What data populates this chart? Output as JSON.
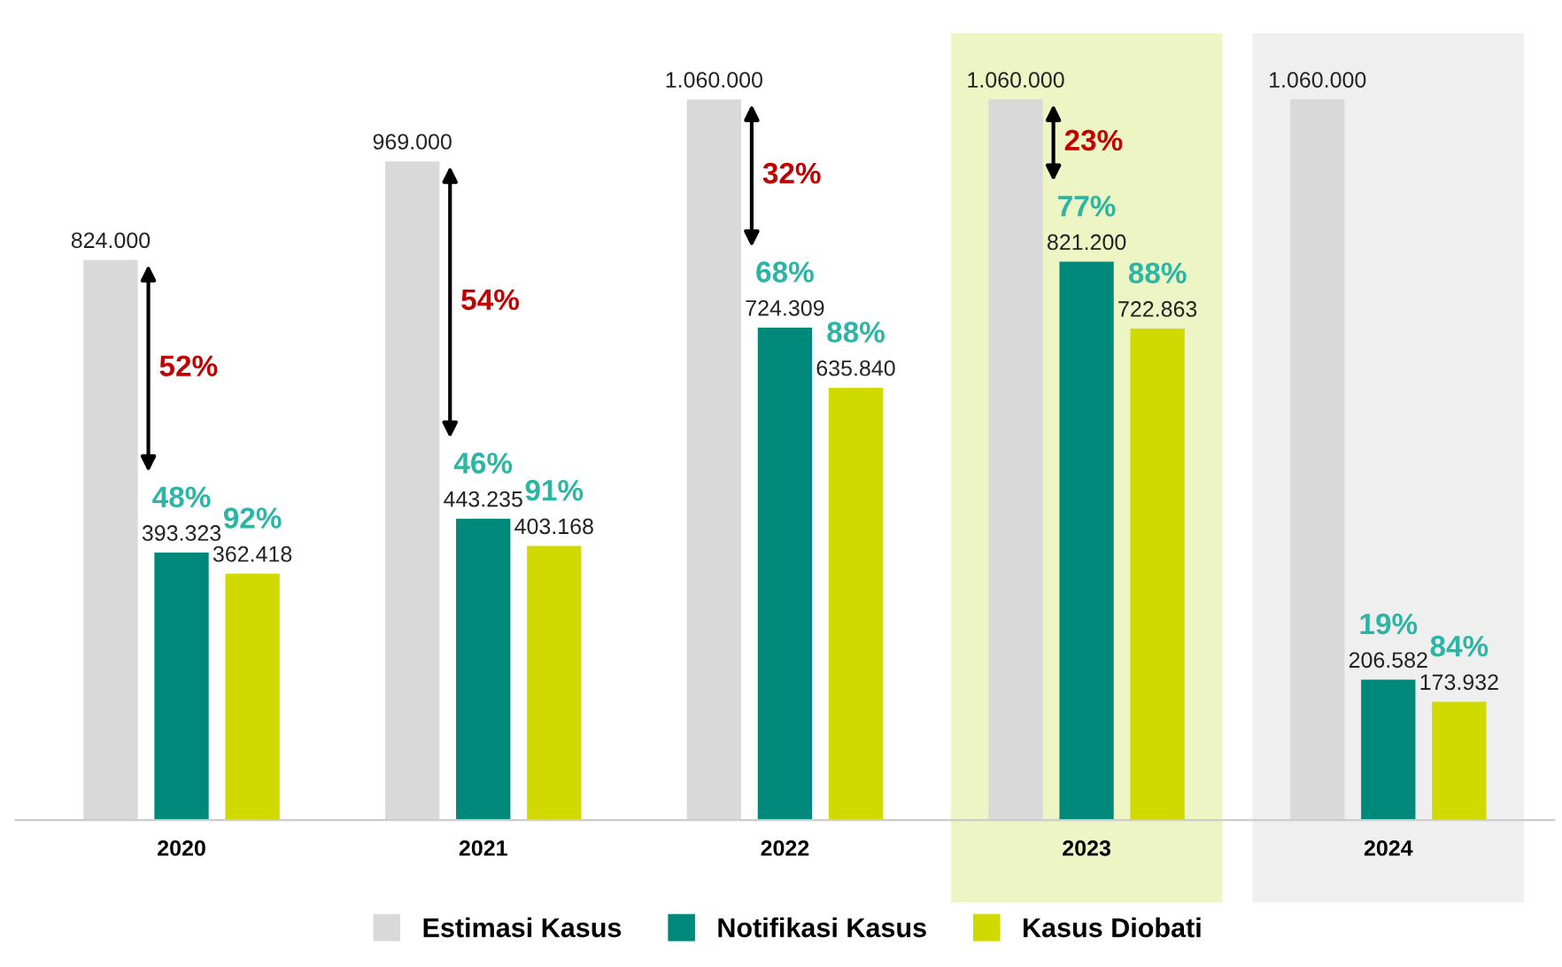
{
  "chart_data": {
    "type": "bar",
    "categories": [
      "2020",
      "2021",
      "2022",
      "2023",
      "2024"
    ],
    "series": [
      {
        "name": "Estimasi Kasus",
        "color": "#d9d9d9",
        "values": [
          824000,
          969000,
          1060000,
          1060000,
          1060000
        ],
        "value_labels": [
          "824.000",
          "969.000",
          "1.060.000",
          "1.060.000",
          "1.060.000"
        ]
      },
      {
        "name": "Notifikasi Kasus",
        "color": "#00897b",
        "values": [
          393323,
          443235,
          724309,
          821200,
          206582
        ],
        "value_labels": [
          "393.323",
          "443.235",
          "724.309",
          "821.200",
          "206.582"
        ]
      },
      {
        "name": "Kasus Diobati",
        "color": "#d0d900",
        "values": [
          362418,
          403168,
          635840,
          722863,
          173932
        ],
        "value_labels": [
          "362.418",
          "403.168",
          "635.840",
          "722.863",
          "173.932"
        ]
      }
    ],
    "annotations": [
      "52%",
      "54%",
      "32%",
      "23%",
      "48%",
      "46%",
      "68%",
      "77%",
      "19%",
      "92%",
      "91%",
      "88%",
      "88%",
      "84%"
    ],
    "bands": [
      {
        "axis": "x",
        "from": "2023",
        "to": "2023",
        "color": "#eef5c4"
      },
      {
        "axis": "x",
        "from": "2024",
        "to": "2024",
        "color": "#efefef"
      }
    ],
    "legend": "bottom"
  }
}
